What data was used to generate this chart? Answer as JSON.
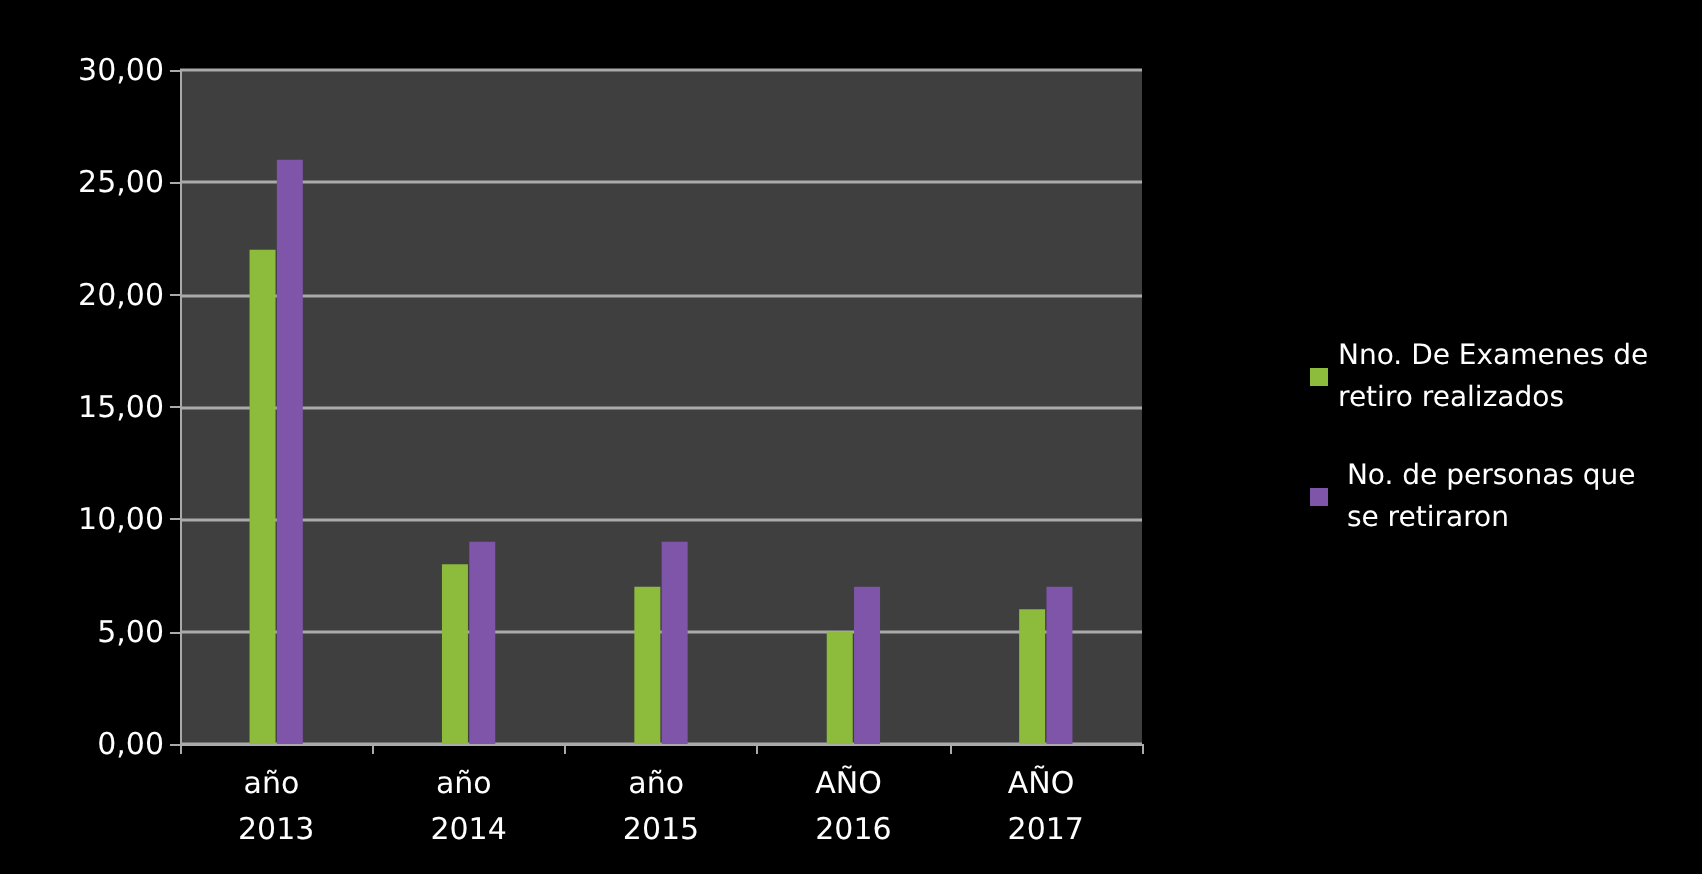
{
  "chart_data": {
    "type": "bar",
    "categories": [
      "año 2013",
      "año 2014",
      "año 2015",
      "AÑO 2016",
      "AÑO 2017"
    ],
    "series": [
      {
        "name": "Nno. De Examenes de retiro realizados",
        "color": "#8dbb3c",
        "values": [
          22,
          8,
          7,
          5,
          6
        ]
      },
      {
        "name": " No. de personas que se retiraron",
        "color": "#7e55a8",
        "values": [
          26,
          9,
          9,
          7,
          7
        ]
      }
    ],
    "ylim": [
      0,
      30
    ],
    "yticks": [
      {
        "value": 0,
        "label": "0,00"
      },
      {
        "value": 5,
        "label": "5,00"
      },
      {
        "value": 10,
        "label": "10,00"
      },
      {
        "value": 15,
        "label": "15,00"
      },
      {
        "value": 20,
        "label": "20,00"
      },
      {
        "value": 25,
        "label": "25,00"
      },
      {
        "value": 30,
        "label": "30,00"
      }
    ],
    "grid": "y",
    "legend": "right"
  }
}
